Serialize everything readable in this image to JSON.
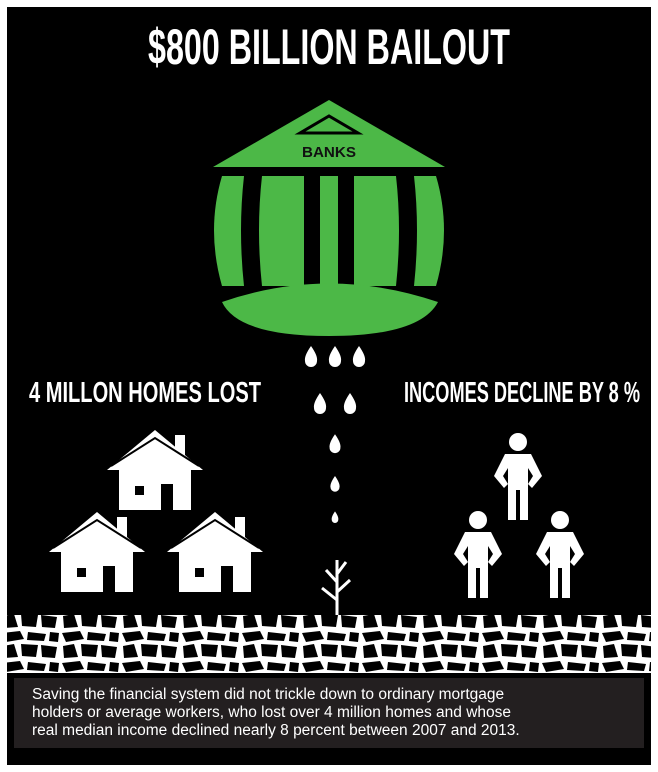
{
  "title": "$800 BILLION BAILOUT",
  "bank_label": "BANKS",
  "left_heading": "4 MILLON HOMES LOST",
  "right_heading": "INCOMES DECLINE BY 8 %",
  "caption": {
    "lines": [
      "Saving the financial system did not trickle down to ordinary mortgage",
      "holders or average workers, who lost over 4 million homes and whose",
      "real median income declined nearly 8 percent between 2007 and 2013."
    ]
  }
}
